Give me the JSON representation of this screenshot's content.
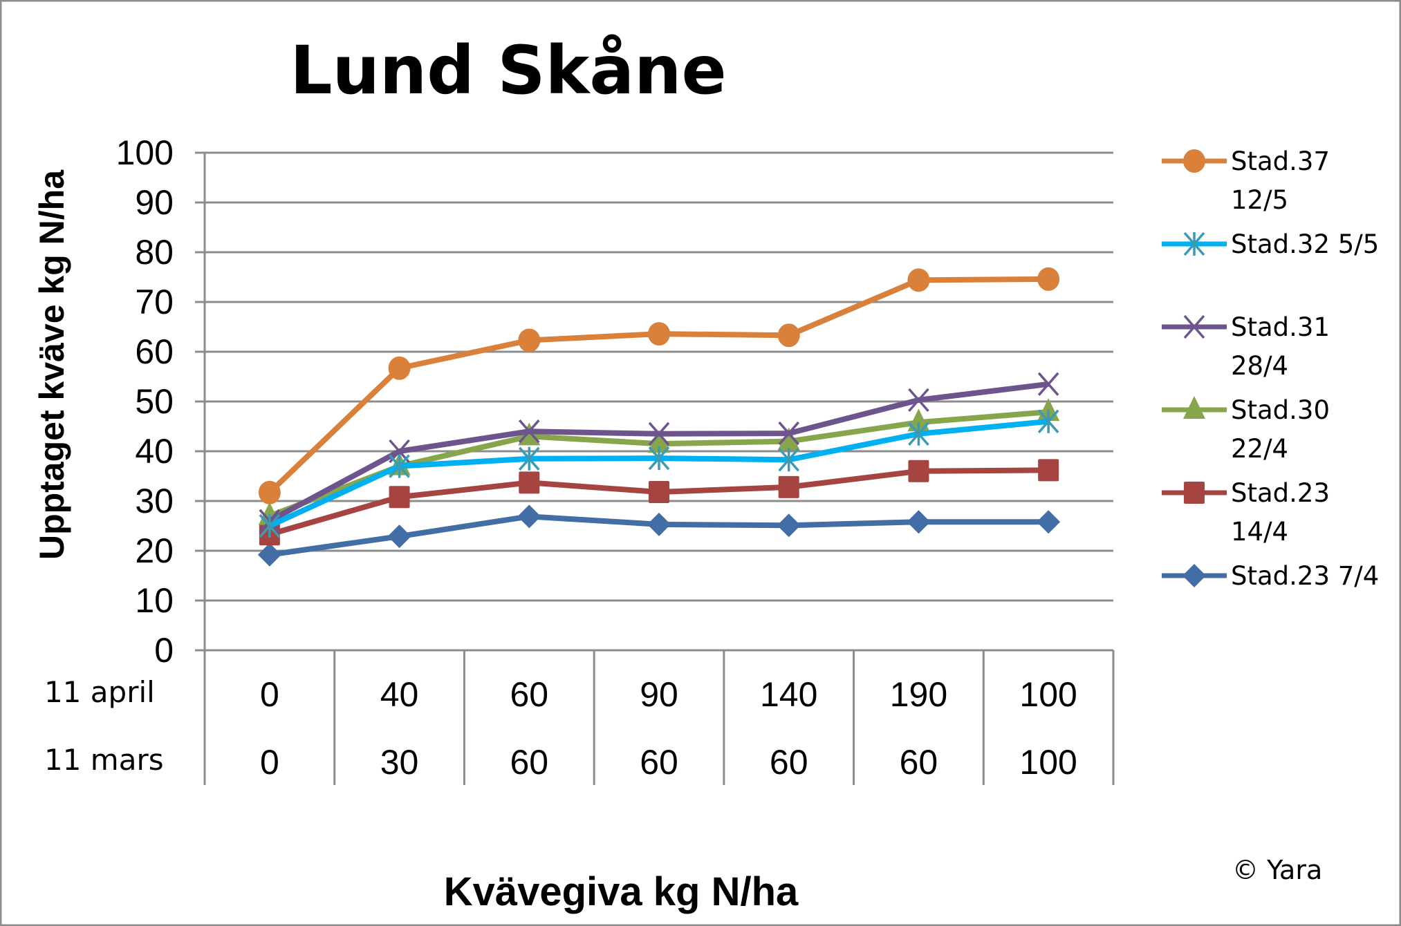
{
  "chart_data": {
    "type": "line",
    "title": "Lund Skåne",
    "xlabel": "Kvävegiva kg N/ha",
    "ylabel": "Upptaget kväve kg N/ha",
    "ylim": [
      0,
      100
    ],
    "yticks": [
      0,
      10,
      20,
      30,
      40,
      50,
      60,
      70,
      80,
      90,
      100
    ],
    "grid": true,
    "legend_position": "right",
    "category_rows": [
      {
        "label": "11 april",
        "values": [
          "0",
          "40",
          "60",
          "90",
          "140",
          "190",
          "100"
        ]
      },
      {
        "label": "11 mars",
        "values": [
          "0",
          "30",
          "60",
          "60",
          "60",
          "60",
          "100"
        ]
      }
    ],
    "series": [
      {
        "name": "Stad.37 12/5",
        "legend_lines": [
          "Stad.37",
          "12/5"
        ],
        "color": "#D9803A",
        "marker": "circle",
        "values": [
          31.7,
          56.7,
          62.3,
          63.6,
          63.3,
          74.4,
          74.6
        ]
      },
      {
        "name": "Stad.32 5/5",
        "legend_lines": [
          "Stad.32 5/5"
        ],
        "color": "#00B0F0",
        "marker_color": "#3A9BB5",
        "marker": "asterisk",
        "values": [
          25,
          37,
          38.5,
          38.6,
          38.3,
          43.5,
          46
        ]
      },
      {
        "name": "Stad.31 28/4",
        "legend_lines": [
          "Stad.31",
          "28/4"
        ],
        "color": "#6E548D",
        "marker": "x",
        "values": [
          26,
          40,
          44,
          43.5,
          43.6,
          50.3,
          53.5
        ]
      },
      {
        "name": "Stad.30 22/4",
        "legend_lines": [
          "Stad.30",
          "22/4"
        ],
        "color": "#87A54B",
        "marker": "triangle",
        "values": [
          27,
          37,
          43,
          41.5,
          42,
          45.8,
          47.9
        ]
      },
      {
        "name": "Stad.23 14/4",
        "legend_lines": [
          "Stad.23",
          "14/4"
        ],
        "color": "#A64442",
        "marker": "square",
        "values": [
          23.3,
          30.8,
          33.7,
          31.8,
          32.8,
          36,
          36.2
        ]
      },
      {
        "name": "Stad.23 7/4",
        "legend_lines": [
          "Stad.23 7/4"
        ],
        "color": "#436EA5",
        "marker": "diamond",
        "values": [
          19.2,
          22.9,
          26.9,
          25.3,
          25.1,
          25.8,
          25.8
        ]
      }
    ]
  },
  "copyright": "© Yara"
}
